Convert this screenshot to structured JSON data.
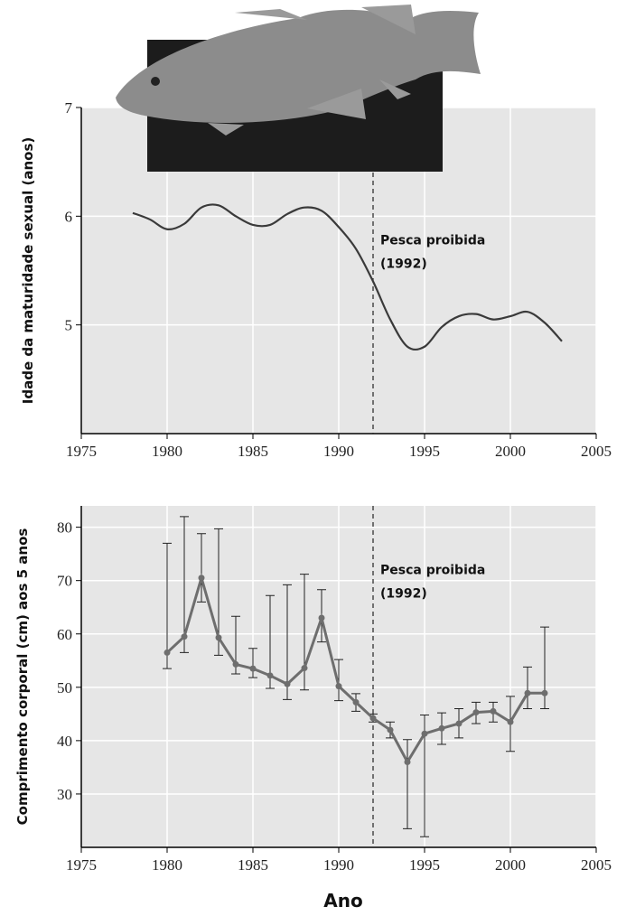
{
  "chart_data": [
    {
      "type": "line",
      "ylabel": "Idade da maturidade sexual (anos)",
      "smooth": true,
      "xlim": [
        1975,
        2005
      ],
      "xticks": [
        1975,
        1980,
        1985,
        1990,
        1995,
        2000,
        2005
      ],
      "ylim": [
        4,
        7
      ],
      "yticks": [
        5,
        6,
        7
      ],
      "grid": true,
      "background": "#e6e6e6",
      "annotation": {
        "x": 1992,
        "lines": [
          "Pesca proibida",
          "(1992)"
        ]
      },
      "x": [
        1978,
        1979,
        1980,
        1981,
        1982,
        1983,
        1984,
        1985,
        1986,
        1987,
        1988,
        1989,
        1990,
        1991,
        1992,
        1993,
        1994,
        1995,
        1996,
        1997,
        1998,
        1999,
        2000,
        2001,
        2002,
        2003
      ],
      "series": [
        {
          "color": "#3a3a3a",
          "values": [
            6.03,
            5.97,
            5.88,
            5.93,
            6.08,
            6.1,
            6.0,
            5.92,
            5.92,
            6.02,
            6.08,
            6.05,
            5.9,
            5.7,
            5.4,
            5.05,
            4.8,
            4.8,
            4.98,
            5.08,
            5.1,
            5.05,
            5.08,
            5.12,
            5.02,
            4.85
          ]
        }
      ]
    },
    {
      "type": "errorline",
      "ylabel": "Comprimento corporal (cm) aos 5 anos",
      "xlabel": "Ano",
      "xlim": [
        1975,
        2005
      ],
      "xticks": [
        1975,
        1980,
        1985,
        1990,
        1995,
        2000,
        2005
      ],
      "ylim": [
        20,
        84
      ],
      "yticks": [
        30,
        40,
        50,
        60,
        70,
        80
      ],
      "grid": true,
      "background": "#e6e6e6",
      "annotation": {
        "x": 1992,
        "lines": [
          "Pesca proibida",
          "(1992)"
        ]
      },
      "x": [
        1980,
        1981,
        1982,
        1983,
        1984,
        1985,
        1986,
        1987,
        1988,
        1989,
        1990,
        1991,
        1992,
        1993,
        1994,
        1995,
        1996,
        1997,
        1998,
        1999,
        2000,
        2001,
        2002
      ],
      "series": [
        {
          "color": "#6e6e6e",
          "values": [
            56.5,
            59.5,
            70.5,
            59.3,
            54.3,
            53.5,
            52.2,
            50.6,
            53.6,
            63,
            50.2,
            47.2,
            44.2,
            42,
            36,
            41.3,
            42.3,
            43.2,
            45.3,
            45.5,
            43.5,
            48.9,
            48.9
          ],
          "lower": [
            53.5,
            56.5,
            66,
            56,
            52.5,
            51.8,
            49.8,
            47.7,
            49.5,
            58.5,
            47.5,
            45.5,
            43.5,
            40.5,
            23.5,
            22,
            39.3,
            40.5,
            43.2,
            43.5,
            38,
            46,
            46
          ],
          "upper": [
            77,
            82,
            78.8,
            79.7,
            63.3,
            57.3,
            67.2,
            69.2,
            71.2,
            68.3,
            55.2,
            48.8,
            45,
            43.5,
            40.2,
            44.8,
            45.2,
            46,
            47.2,
            47.2,
            48.3,
            53.8,
            61.3
          ]
        }
      ]
    }
  ]
}
